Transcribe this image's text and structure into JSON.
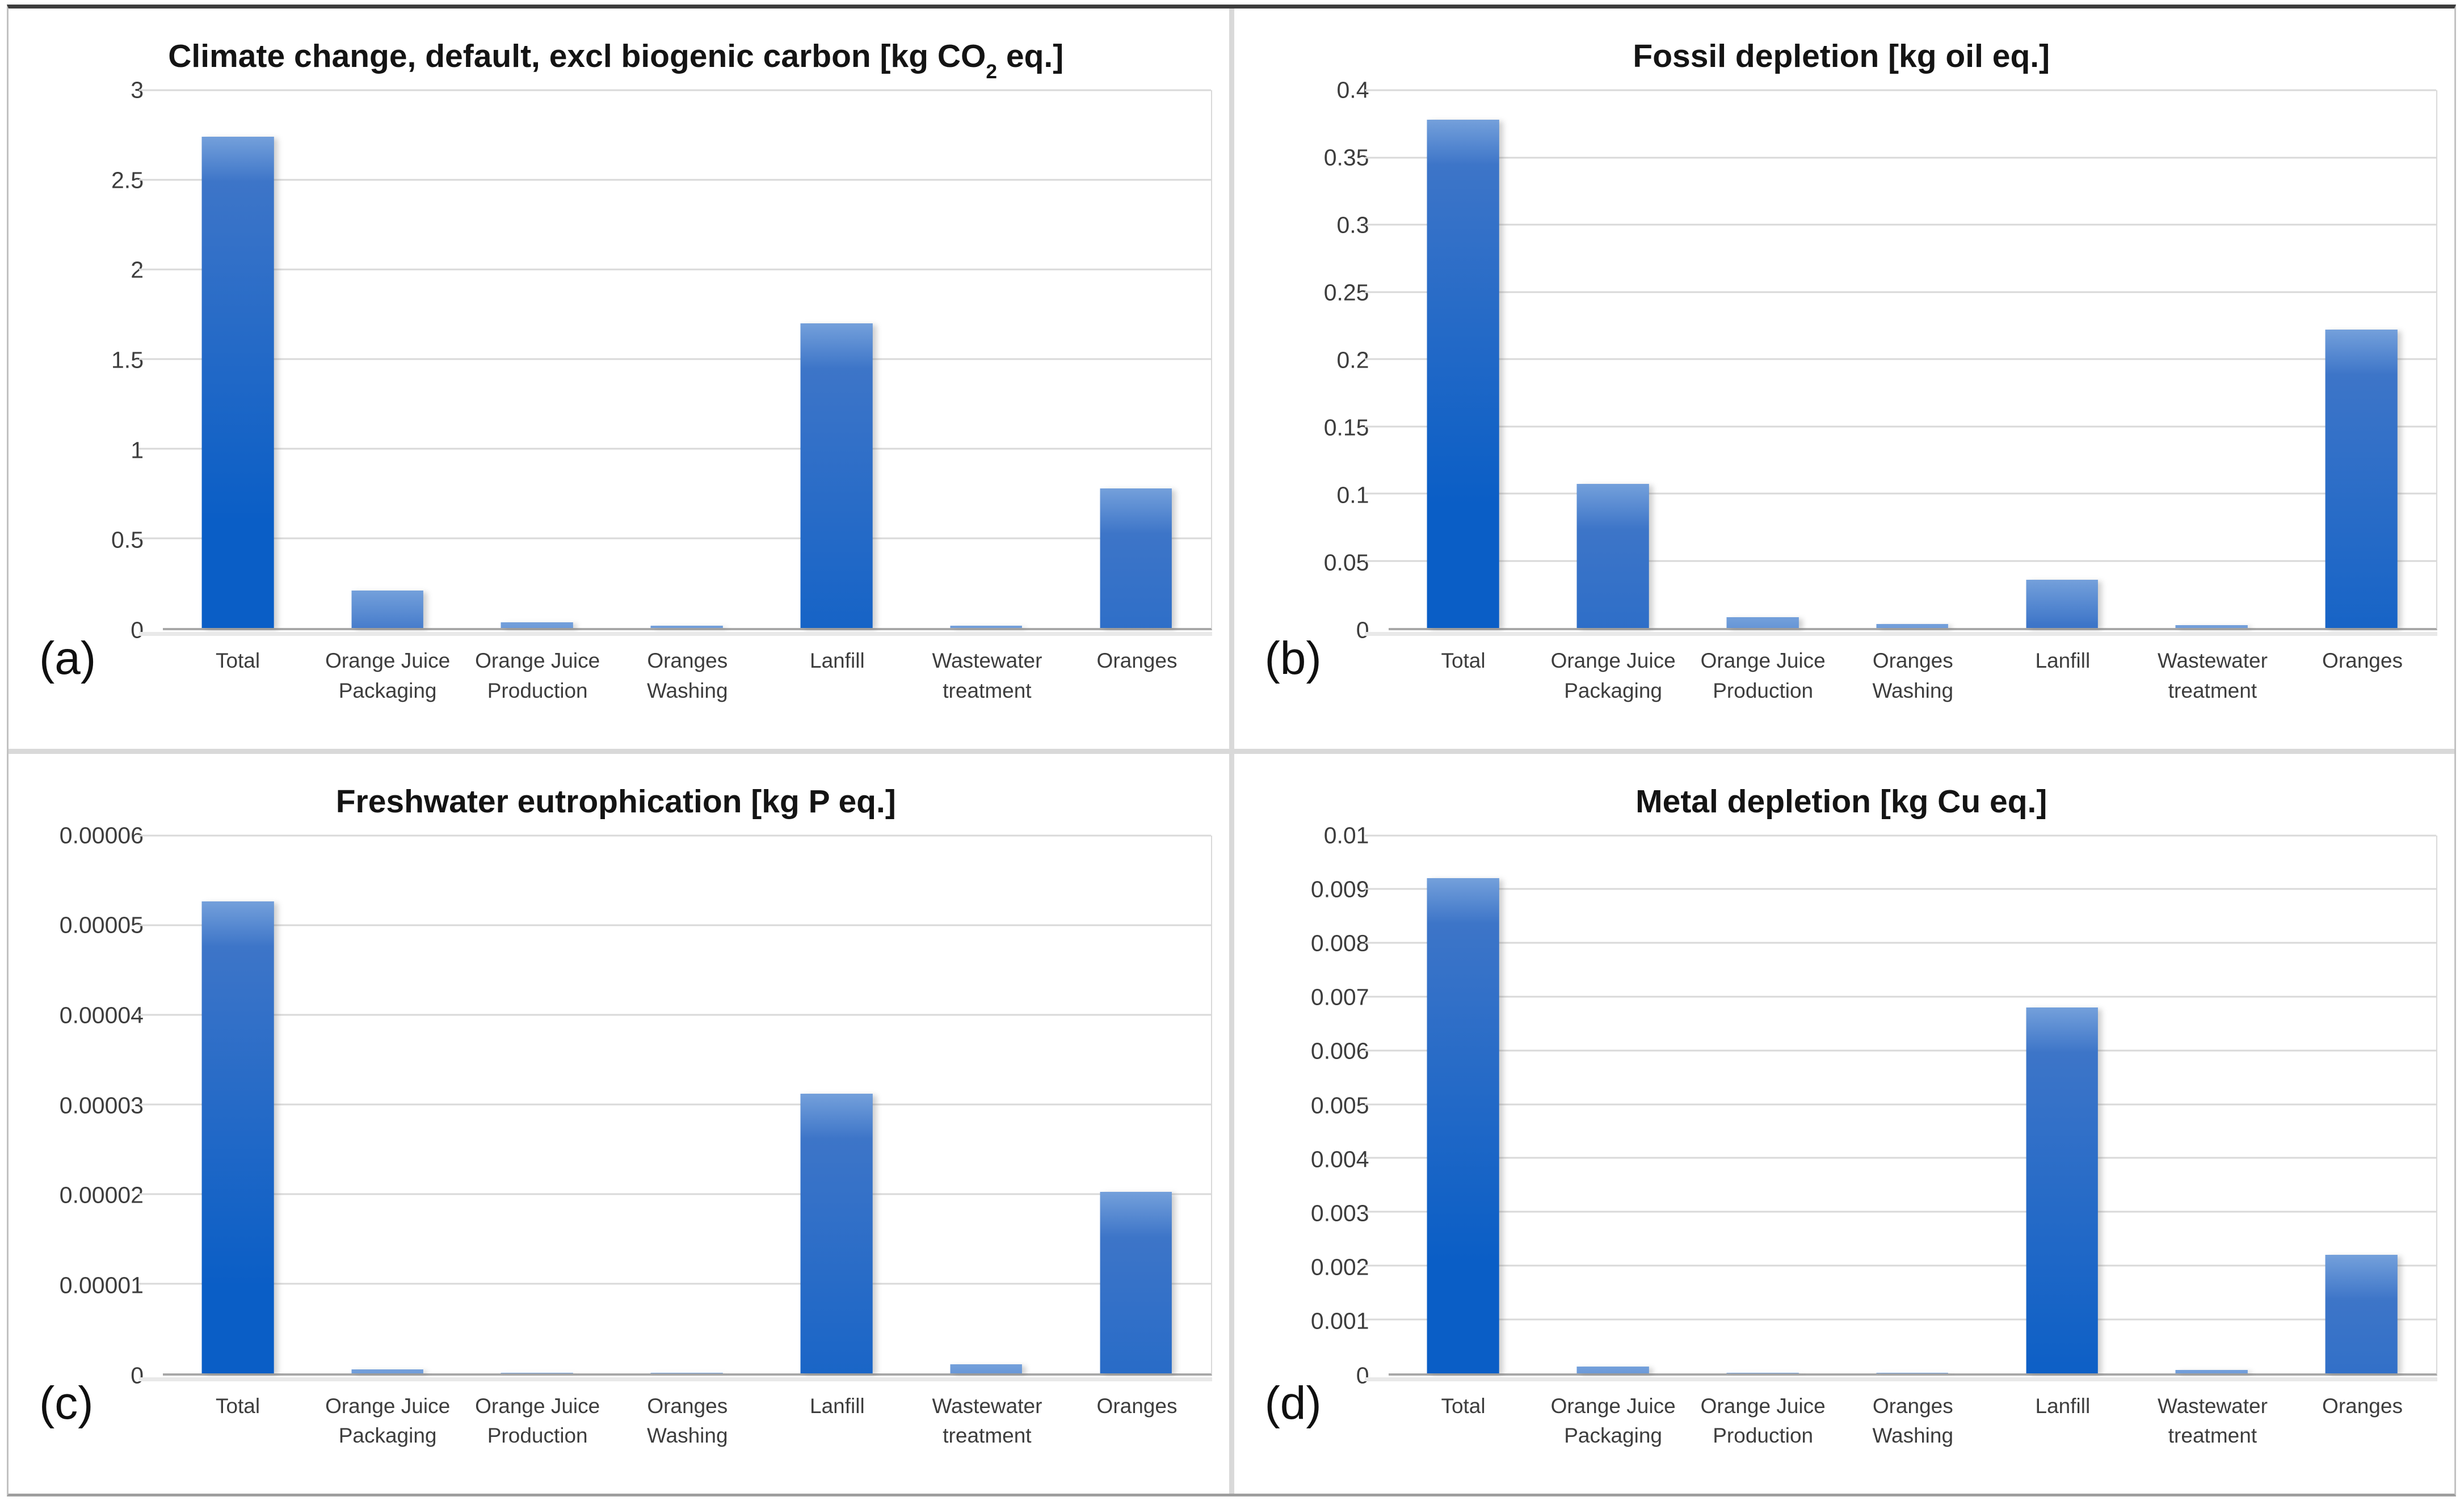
{
  "figure": {
    "background": "#ffffff",
    "panel_rows": 2,
    "panel_cols": 2
  },
  "colors": {
    "bar_top": "#74a0db",
    "bar_mid": "#3d75c8",
    "bar_bottom": "#0a5ec6",
    "gridline": "#d9d9d9",
    "axis_line": "#a8a8a8",
    "title_text": "#141414",
    "tick_text": "#3d3d3d",
    "divider": "#d9d9d9"
  },
  "chart_data": [
    {
      "type": "bar",
      "letter": "(a)",
      "title": "Climate change, default, excl biogenic carbon [kg CO2 eq.]",
      "title_parts": {
        "pre": "Climate change, default, excl biogenic carbon [kg CO",
        "sub": "2",
        "post": " eq.]"
      },
      "categories": [
        [
          "Total"
        ],
        [
          "Orange Juice",
          "Packaging"
        ],
        [
          "Orange Juice",
          "Production"
        ],
        [
          "Oranges Washing"
        ],
        [
          "Lanfill"
        ],
        [
          "Wastewater",
          "treatment"
        ],
        [
          "Oranges"
        ]
      ],
      "values": [
        2.74,
        0.21,
        0.032,
        0.013,
        1.7,
        0.013,
        0.78
      ],
      "ylim": [
        0,
        3
      ],
      "yticks": [
        {
          "v": 0,
          "label": "0"
        },
        {
          "v": 0.5,
          "label": "0.5"
        },
        {
          "v": 1,
          "label": "1"
        },
        {
          "v": 1.5,
          "label": "1.5"
        },
        {
          "v": 2,
          "label": "2"
        },
        {
          "v": 2.5,
          "label": "2.5"
        },
        {
          "v": 3,
          "label": "3"
        }
      ],
      "xlabel": "",
      "ylabel": "",
      "grid": true,
      "legend": "none"
    },
    {
      "type": "bar",
      "letter": "(b)",
      "title": "Fossil depletion [kg oil eq.]",
      "title_parts": {
        "pre": "Fossil depletion [kg oil eq.]",
        "sub": "",
        "post": ""
      },
      "categories": [
        [
          "Total"
        ],
        [
          "Orange Juice",
          "Packaging"
        ],
        [
          "Orange Juice",
          "Production"
        ],
        [
          "Oranges Washing"
        ],
        [
          "Lanfill"
        ],
        [
          "Wastewater",
          "treatment"
        ],
        [
          "Oranges"
        ]
      ],
      "values": [
        0.378,
        0.107,
        0.008,
        0.003,
        0.036,
        0.002,
        0.222
      ],
      "ylim": [
        0,
        0.4
      ],
      "yticks": [
        {
          "v": 0,
          "label": "0"
        },
        {
          "v": 0.05,
          "label": "0.05"
        },
        {
          "v": 0.1,
          "label": "0.1"
        },
        {
          "v": 0.15,
          "label": "0.15"
        },
        {
          "v": 0.2,
          "label": "0.2"
        },
        {
          "v": 0.25,
          "label": "0.25"
        },
        {
          "v": 0.3,
          "label": "0.3"
        },
        {
          "v": 0.35,
          "label": "0.35"
        },
        {
          "v": 0.4,
          "label": "0.4"
        }
      ],
      "xlabel": "",
      "ylabel": "",
      "grid": true,
      "legend": "none"
    },
    {
      "type": "bar",
      "letter": "(c)",
      "title": "Freshwater eutrophication [kg P eq.]",
      "title_parts": {
        "pre": "Freshwater eutrophication [kg P eq.]",
        "sub": "",
        "post": ""
      },
      "categories": [
        [
          "Total"
        ],
        [
          "Orange Juice",
          "Packaging"
        ],
        [
          "Orange Juice",
          "Production"
        ],
        [
          "Oranges Washing"
        ],
        [
          "Lanfill"
        ],
        [
          "Wastewater",
          "treatment"
        ],
        [
          "Oranges"
        ]
      ],
      "values": [
        5.26e-05,
        4e-07,
        5e-08,
        5e-08,
        3.12e-05,
        1e-06,
        2.02e-05
      ],
      "ylim": [
        0,
        6e-05
      ],
      "yticks": [
        {
          "v": 0,
          "label": "0"
        },
        {
          "v": 1e-05,
          "label": "0.00001"
        },
        {
          "v": 2e-05,
          "label": "0.00002"
        },
        {
          "v": 3e-05,
          "label": "0.00003"
        },
        {
          "v": 4e-05,
          "label": "0.00004"
        },
        {
          "v": 5e-05,
          "label": "0.00005"
        },
        {
          "v": 6e-05,
          "label": "0.00006"
        }
      ],
      "xlabel": "",
      "ylabel": "",
      "grid": true,
      "legend": "none"
    },
    {
      "type": "bar",
      "letter": "(d)",
      "title": "Metal depletion [kg Cu eq.]",
      "title_parts": {
        "pre": "Metal depletion [kg Cu eq.]",
        "sub": "",
        "post": ""
      },
      "categories": [
        [
          "Total"
        ],
        [
          "Orange Juice",
          "Packaging"
        ],
        [
          "Orange Juice",
          "Production"
        ],
        [
          "Oranges Washing"
        ],
        [
          "Lanfill"
        ],
        [
          "Wastewater",
          "treatment"
        ],
        [
          "Oranges"
        ]
      ],
      "values": [
        0.0092,
        0.00012,
        1e-05,
        1e-05,
        0.0068,
        6e-05,
        0.0022
      ],
      "ylim": [
        0,
        0.01
      ],
      "yticks": [
        {
          "v": 0,
          "label": "0"
        },
        {
          "v": 0.001,
          "label": "0.001"
        },
        {
          "v": 0.002,
          "label": "0.002"
        },
        {
          "v": 0.003,
          "label": "0.003"
        },
        {
          "v": 0.004,
          "label": "0.004"
        },
        {
          "v": 0.005,
          "label": "0.005"
        },
        {
          "v": 0.006,
          "label": "0.006"
        },
        {
          "v": 0.007,
          "label": "0.007"
        },
        {
          "v": 0.008,
          "label": "0.008"
        },
        {
          "v": 0.009,
          "label": "0.009"
        },
        {
          "v": 0.01,
          "label": "0.01"
        }
      ],
      "xlabel": "",
      "ylabel": "",
      "grid": true,
      "legend": "none"
    }
  ]
}
